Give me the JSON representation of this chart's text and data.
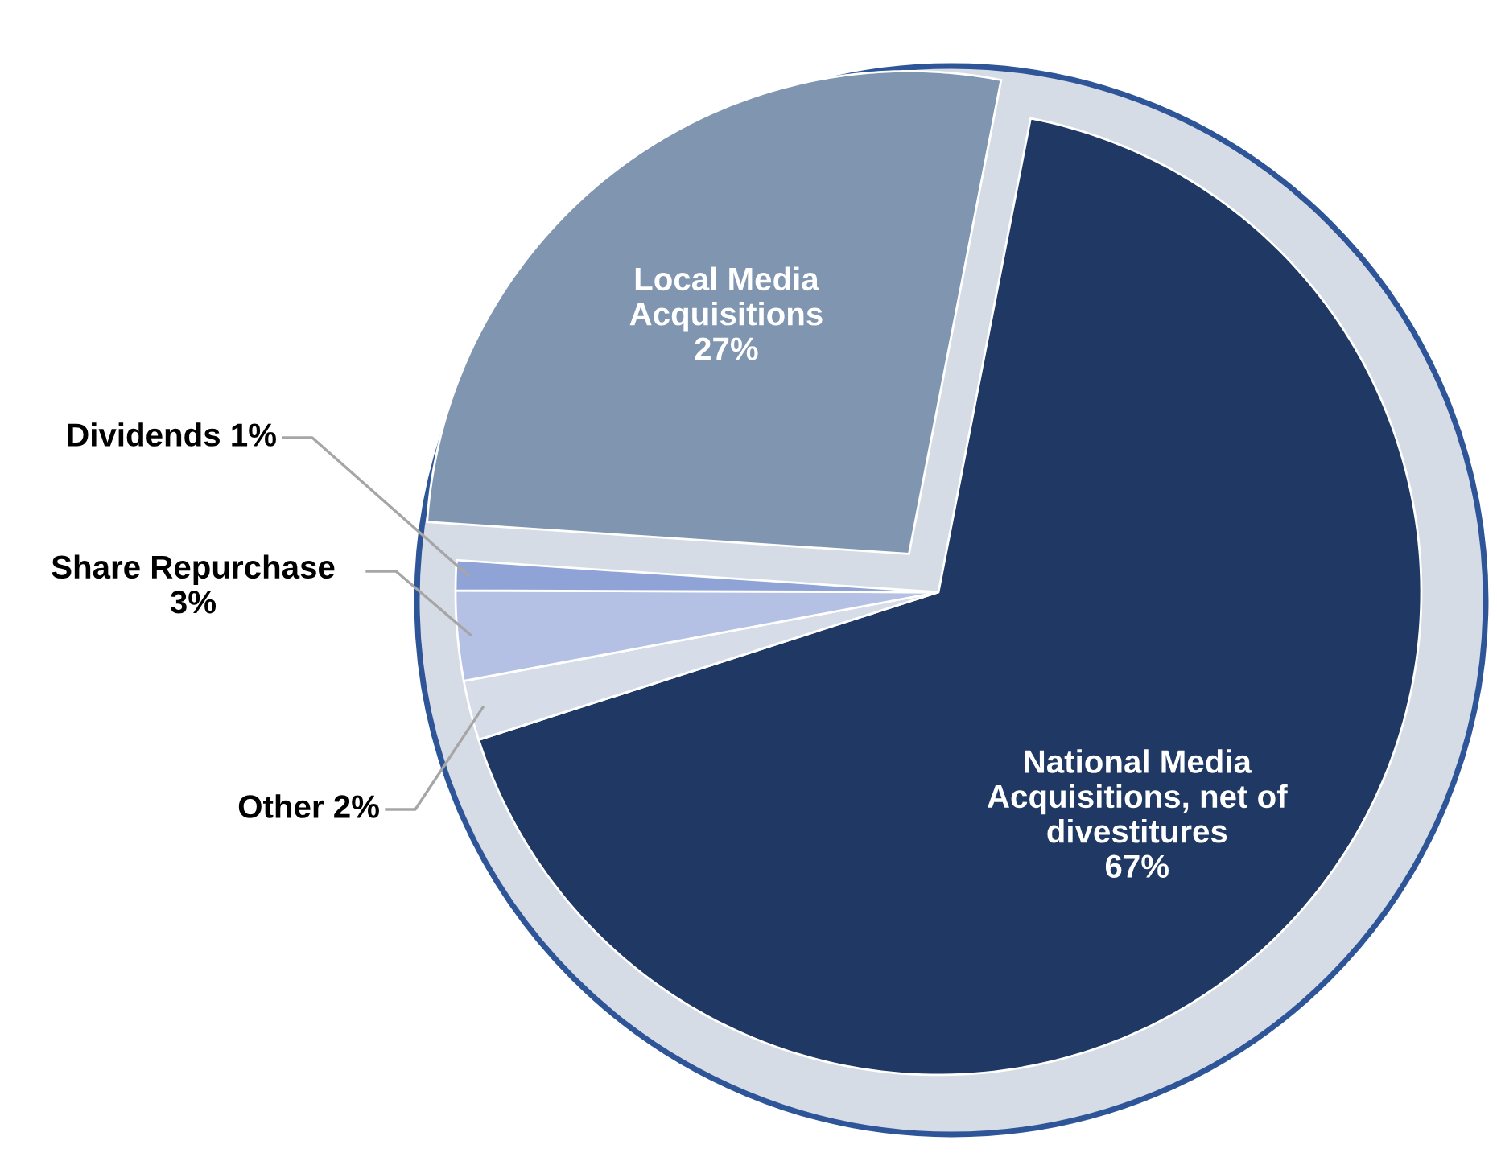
{
  "chart_data": {
    "type": "pie",
    "categories": [
      "National Media Acquisitions, net of divestitures",
      "Other",
      "Share Repurchase",
      "Dividends",
      "Local Media Acquisitions"
    ],
    "values": [
      67,
      2,
      3,
      1,
      27
    ],
    "value_labels": [
      "67%",
      "2%",
      "3%",
      "1%",
      "27%"
    ],
    "colors": [
      "#203864",
      "#d6dde8",
      "#b4c0e4",
      "#8fa3d6",
      "#8096b0"
    ]
  }
}
